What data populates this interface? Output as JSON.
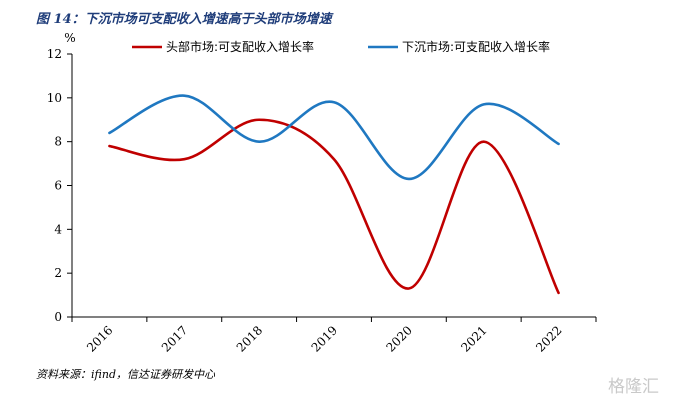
{
  "figure": {
    "title": "图 14：下沉市场可支配收入增速高于头部市场增速",
    "source": "资料来源：ifind，信达证券研发中心",
    "watermark": "格隆汇"
  },
  "colors": {
    "series_1": "#c00000",
    "series_2": "#1f78c1",
    "title": "#1f3d7a",
    "axis": "#000000"
  },
  "chart_data": {
    "type": "line",
    "smooth": true,
    "ylabel": "%",
    "ylim": [
      0,
      12
    ],
    "yticks": [
      0,
      2,
      4,
      6,
      8,
      10,
      12
    ],
    "categories": [
      "2016",
      "2017",
      "2018",
      "2019",
      "2020",
      "2021",
      "2022"
    ],
    "legend_position": "top",
    "grid": false,
    "series": [
      {
        "name": "头部市场:可支配收入增长率",
        "color": "#c00000",
        "values": [
          7.8,
          7.2,
          9.0,
          7.2,
          1.3,
          8.0,
          1.1
        ]
      },
      {
        "name": "下沉市场:可支配收入增长率",
        "color": "#1f78c1",
        "values": [
          8.4,
          10.1,
          8.0,
          9.8,
          6.3,
          9.7,
          7.9
        ]
      }
    ]
  }
}
